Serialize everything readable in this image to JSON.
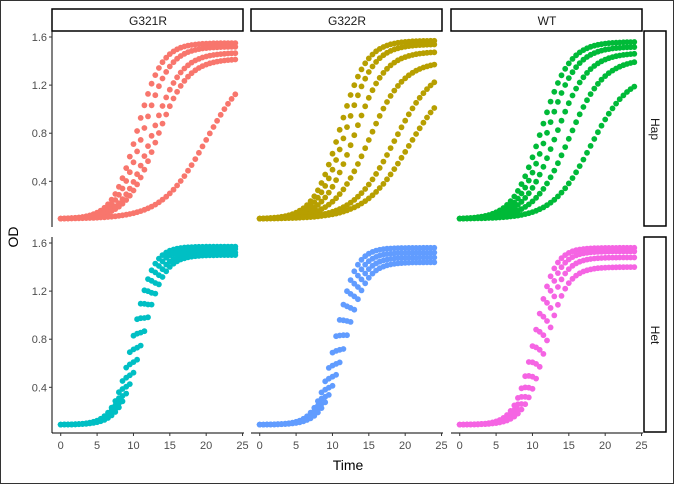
{
  "chart_data": {
    "type": "scatter",
    "xlabel": "Time",
    "ylabel": "OD",
    "xlim": [
      -1.2,
      25.2
    ],
    "ylim": [
      0.02,
      1.65
    ],
    "x_ticks": [
      "0",
      "5",
      "10",
      "15",
      "20",
      "25"
    ],
    "y_ticks": [
      "0.4",
      "0.8",
      "1.2",
      "1.6"
    ],
    "columns": [
      "G321R",
      "G322R",
      "WT"
    ],
    "rows": [
      "Hap",
      "Het"
    ],
    "grid": false,
    "legend": "none",
    "time_points": [
      0,
      0.5,
      1,
      1.5,
      2,
      2.5,
      3,
      3.5,
      4,
      4.5,
      5,
      5.5,
      6,
      6.5,
      7,
      7.5,
      8,
      8.5,
      9,
      9.5,
      10,
      10.5,
      11,
      11.5,
      12,
      12.5,
      13,
      13.5,
      14,
      14.5,
      15,
      15.5,
      16,
      16.5,
      17,
      17.5,
      18,
      18.5,
      19,
      19.5,
      20,
      20.5,
      21,
      21.5,
      22,
      22.5,
      23,
      23.5,
      24
    ],
    "panels": [
      {
        "column": "G321R",
        "row": "Hap",
        "color": "#F8766D",
        "series": [
          {
            "start": 0.09,
            "max": 1.55,
            "midpoint": 10.5,
            "rate": 0.6
          },
          {
            "start": 0.09,
            "max": 1.52,
            "midpoint": 11.3,
            "rate": 0.55
          },
          {
            "start": 0.09,
            "max": 1.47,
            "midpoint": 12.5,
            "rate": 0.5
          },
          {
            "start": 0.09,
            "max": 1.42,
            "midpoint": 13.2,
            "rate": 0.48
          },
          {
            "start": 0.09,
            "max": 1.4,
            "midpoint": 20.0,
            "rate": 0.33
          }
        ]
      },
      {
        "column": "G322R",
        "row": "Hap",
        "color": "#B79F00",
        "series": [
          {
            "start": 0.09,
            "max": 1.57,
            "midpoint": 11.0,
            "rate": 0.55
          },
          {
            "start": 0.09,
            "max": 1.54,
            "midpoint": 11.8,
            "rate": 0.52
          },
          {
            "start": 0.09,
            "max": 1.48,
            "midpoint": 13.0,
            "rate": 0.48
          },
          {
            "start": 0.09,
            "max": 1.4,
            "midpoint": 15.0,
            "rate": 0.42
          },
          {
            "start": 0.09,
            "max": 1.38,
            "midpoint": 18.5,
            "rate": 0.36
          },
          {
            "start": 0.09,
            "max": 1.3,
            "midpoint": 20.5,
            "rate": 0.33
          }
        ]
      },
      {
        "column": "WT",
        "row": "Hap",
        "color": "#00BA38",
        "series": [
          {
            "start": 0.09,
            "max": 1.56,
            "midpoint": 11.2,
            "rate": 0.52
          },
          {
            "start": 0.09,
            "max": 1.52,
            "midpoint": 12.0,
            "rate": 0.5
          },
          {
            "start": 0.09,
            "max": 1.47,
            "midpoint": 13.2,
            "rate": 0.46
          },
          {
            "start": 0.09,
            "max": 1.42,
            "midpoint": 15.0,
            "rate": 0.42
          },
          {
            "start": 0.09,
            "max": 1.3,
            "midpoint": 18.0,
            "rate": 0.38
          }
        ]
      },
      {
        "column": "G321R",
        "row": "Het",
        "color": "#00BFC4",
        "series": [
          {
            "start": 0.09,
            "max": 1.57,
            "midpoint": 10.0,
            "rate": 0.75
          },
          {
            "start": 0.09,
            "max": 1.55,
            "midpoint": 10.4,
            "rate": 0.72
          },
          {
            "start": 0.09,
            "max": 1.52,
            "midpoint": 10.8,
            "rate": 0.7
          },
          {
            "start": 0.09,
            "max": 1.5,
            "midpoint": 11.2,
            "rate": 0.68
          }
        ]
      },
      {
        "column": "G322R",
        "row": "Het",
        "color": "#619CFF",
        "series": [
          {
            "start": 0.09,
            "max": 1.56,
            "midpoint": 10.5,
            "rate": 0.75
          },
          {
            "start": 0.09,
            "max": 1.52,
            "midpoint": 10.9,
            "rate": 0.72
          },
          {
            "start": 0.09,
            "max": 1.48,
            "midpoint": 11.3,
            "rate": 0.7
          },
          {
            "start": 0.09,
            "max": 1.44,
            "midpoint": 11.7,
            "rate": 0.68
          }
        ]
      },
      {
        "column": "WT",
        "row": "Het",
        "color": "#F564E3",
        "series": [
          {
            "start": 0.09,
            "max": 1.56,
            "midpoint": 10.3,
            "rate": 0.75
          },
          {
            "start": 0.09,
            "max": 1.53,
            "midpoint": 10.8,
            "rate": 0.72
          },
          {
            "start": 0.09,
            "max": 1.48,
            "midpoint": 11.3,
            "rate": 0.7
          },
          {
            "start": 0.09,
            "max": 1.4,
            "midpoint": 11.8,
            "rate": 0.68
          }
        ]
      }
    ]
  }
}
